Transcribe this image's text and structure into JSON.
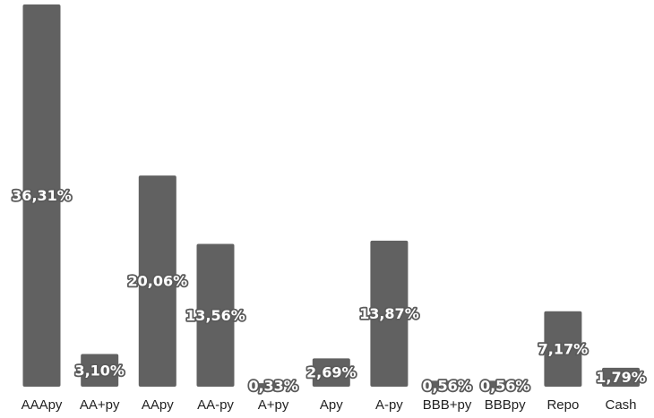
{
  "chart_data": {
    "type": "bar",
    "categories": [
      "AAApy",
      "AA+py",
      "AApy",
      "AA-py",
      "A+py",
      "Apy",
      "A-py",
      "BBB+py",
      "BBBpy",
      "Repo",
      "Cash"
    ],
    "values": [
      36.31,
      3.1,
      20.06,
      13.56,
      0.33,
      2.69,
      13.87,
      0.56,
      0.56,
      7.17,
      1.79
    ],
    "value_labels": [
      "36,31%",
      "3,10%",
      "20,06%",
      "13,56%",
      "0,33%",
      "2,69%",
      "13,87%",
      "0,56%",
      "0,56%",
      "7,17%",
      "1,79%"
    ],
    "title": "",
    "xlabel": "",
    "ylabel": "",
    "ylim": [
      0,
      36.31
    ],
    "grid": false,
    "legend": "none",
    "bar_color": "#616161"
  }
}
